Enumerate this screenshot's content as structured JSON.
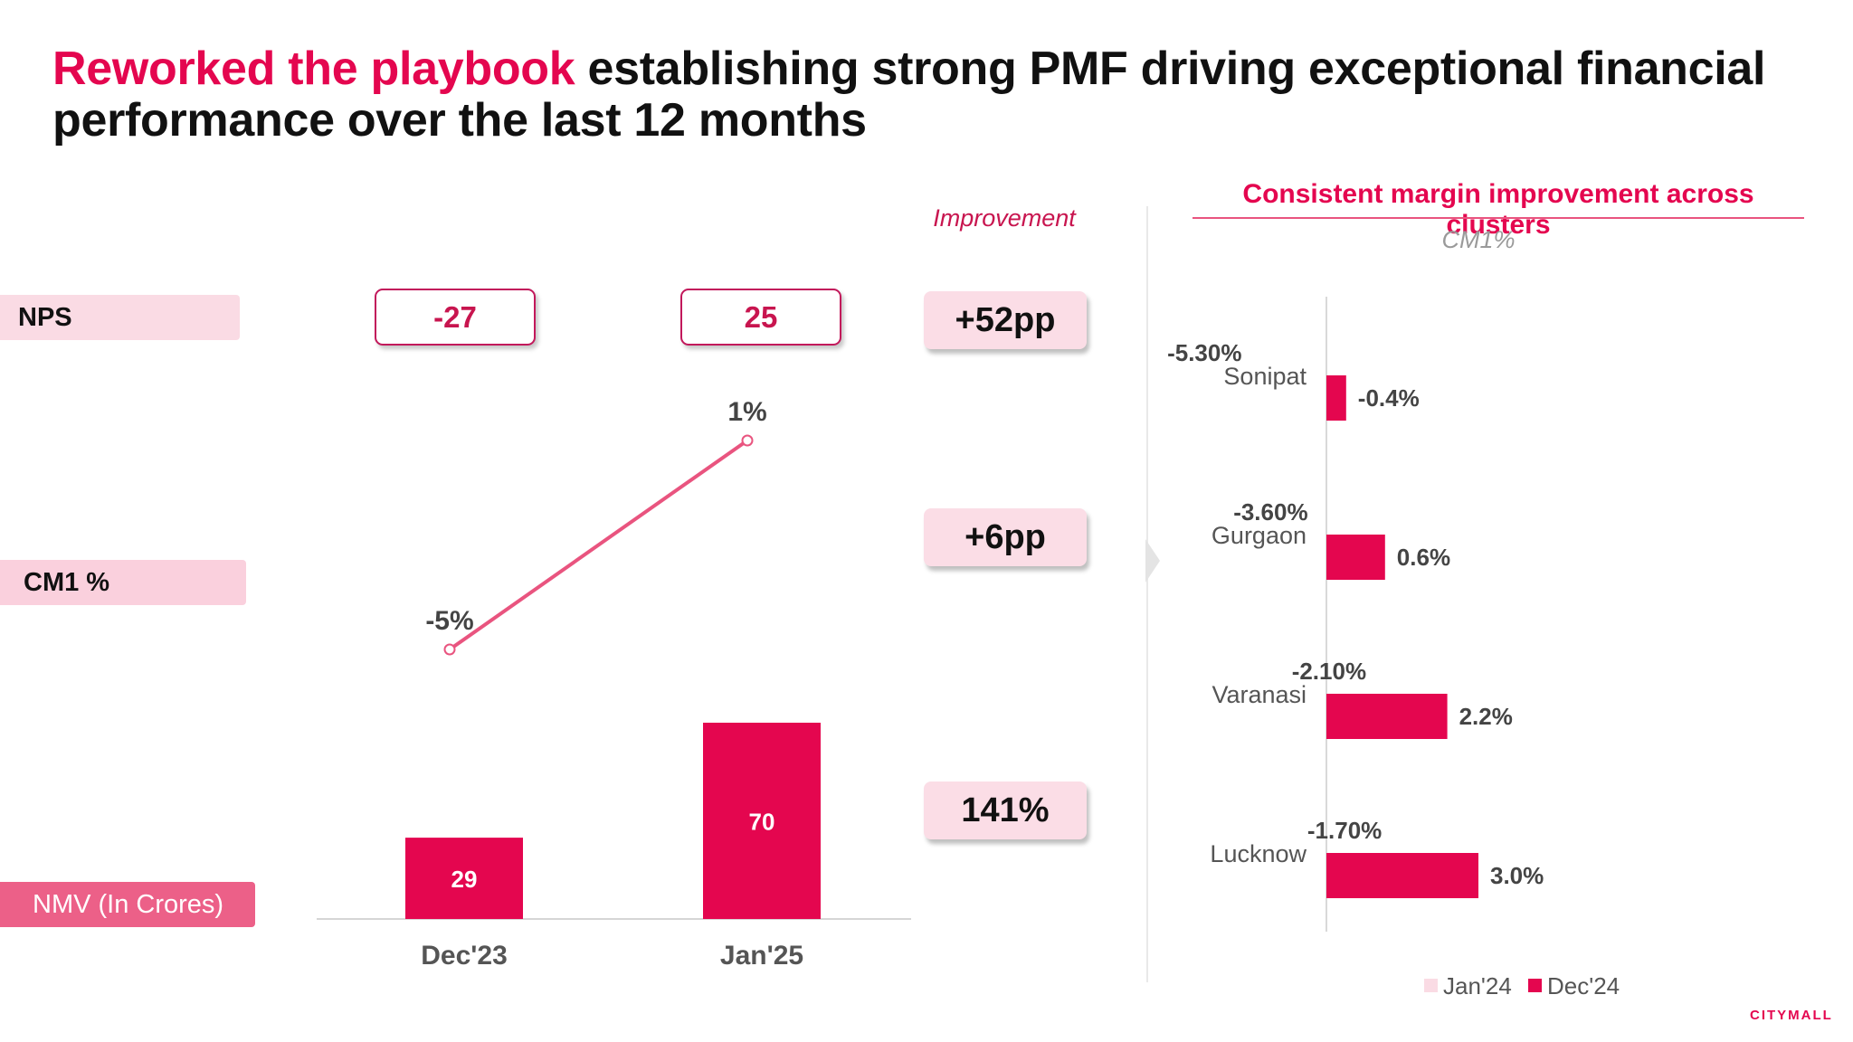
{
  "title": {
    "highlight": "Reworked the playbook",
    "rest": " establishing strong PMF driving exceptional financial performance over the last 12 months"
  },
  "row_labels": {
    "nps": "NPS",
    "cm1": "CM1 %",
    "nmv": "NMV (In Crores)"
  },
  "nps_values": [
    "-27",
    "25"
  ],
  "improvement": {
    "header": "Improvement",
    "values": [
      "+52pp",
      "+6pp",
      "141%"
    ]
  },
  "right_panel": {
    "title": "Consistent margin improvement across clusters",
    "subtitle": "CM1%"
  },
  "brand": "CITYMALL",
  "colors": {
    "accent": "#e4064f",
    "light_bar": "#fadbe4",
    "line": "#e9547f"
  },
  "chart_data": [
    {
      "type": "bar",
      "categories": [
        "Dec'23",
        "Jan'25"
      ],
      "series": [
        {
          "values": [
            29,
            70
          ]
        }
      ],
      "line_series": {
        "values": [
          -5,
          1
        ],
        "labels": [
          "-5%",
          "1%"
        ]
      },
      "ylim": [
        0,
        100
      ],
      "xlabel": "",
      "ylabel": ""
    },
    {
      "type": "bar",
      "orientation": "horizontal",
      "categories": [
        "Sonipat",
        "Gurgaon",
        "Varanasi",
        "Lucknow"
      ],
      "series": [
        {
          "name": "Jan'24",
          "values": [
            -5.3,
            -3.6,
            -2.1,
            -1.7
          ],
          "labels": [
            "-5.30%",
            "-3.60%",
            "-2.10%",
            "-1.70%"
          ],
          "color": "#fadbe4"
        },
        {
          "name": "Dec'24",
          "values": [
            -0.4,
            0.6,
            2.2,
            3.0
          ],
          "labels": [
            "-0.4%",
            "0.6%",
            "2.2%",
            "3.0%"
          ],
          "color": "#e4064f"
        }
      ],
      "legend": "bottom",
      "grid": false
    }
  ]
}
